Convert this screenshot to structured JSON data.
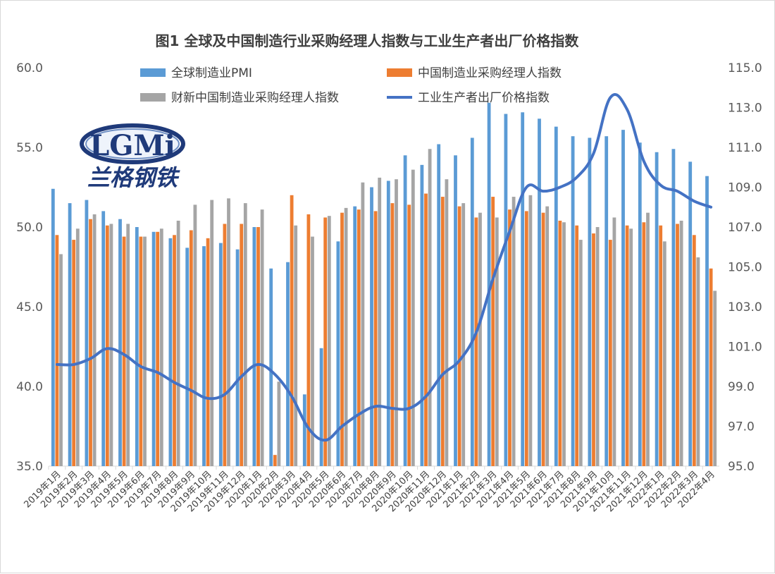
{
  "chart_data": {
    "type": "bar",
    "title": "图1 全球及中国制造行业采购经理人指数与工业生产者出厂价格指数",
    "categories": [
      "2019年1月",
      "2019年2月",
      "2019年3月",
      "2019年4月",
      "2019年5月",
      "2019年6月",
      "2019年7月",
      "2019年8月",
      "2019年9月",
      "2019年10月",
      "2019年11月",
      "2019年12月",
      "2020年1月",
      "2020年2月",
      "2020年3月",
      "2020年4月",
      "2020年5月",
      "2020年6月",
      "2020年7月",
      "2020年8月",
      "2020年9月",
      "2020年10月",
      "2020年11月",
      "2020年12月",
      "2021年1月",
      "2021年2月",
      "2021年3月",
      "2021年4月",
      "2021年5月",
      "2021年6月",
      "2021年7月",
      "2021年8月",
      "2021年9月",
      "2021年10月",
      "2021年11月",
      "2021年12月",
      "2022年1月",
      "2022年2月",
      "2022年3月",
      "2022年4月"
    ],
    "series": [
      {
        "name": "全球制造业PMI",
        "type": "bar",
        "axis": "left",
        "color": "#5b9bd5",
        "values": [
          52.4,
          51.5,
          51.7,
          51.0,
          50.5,
          50.0,
          49.7,
          49.3,
          48.7,
          48.8,
          49.0,
          48.6,
          50.0,
          47.4,
          47.8,
          39.5,
          42.4,
          49.1,
          51.3,
          52.5,
          52.9,
          54.5,
          53.9,
          55.2,
          54.5,
          55.6,
          57.8,
          57.1,
          57.2,
          56.8,
          56.3,
          55.7,
          55.6,
          55.7,
          56.1,
          55.3,
          54.7,
          54.9,
          54.1,
          53.2
        ]
      },
      {
        "name": "中国制造业采购经理人指数",
        "type": "bar",
        "axis": "left",
        "color": "#ed7d31",
        "values": [
          49.5,
          49.2,
          50.5,
          50.1,
          49.4,
          49.4,
          49.7,
          49.5,
          49.8,
          49.3,
          50.2,
          50.2,
          50.0,
          35.7,
          52.0,
          50.8,
          50.6,
          50.9,
          51.1,
          51.0,
          51.5,
          51.4,
          52.1,
          51.9,
          51.3,
          50.6,
          51.9,
          51.1,
          51.0,
          50.9,
          50.4,
          50.1,
          49.6,
          49.2,
          50.1,
          50.3,
          50.1,
          50.2,
          49.5,
          47.4
        ]
      },
      {
        "name": "财新中国制造业采购经理人指数",
        "type": "bar",
        "axis": "left",
        "color": "#a5a5a5",
        "values": [
          48.3,
          49.9,
          50.8,
          50.2,
          50.2,
          49.4,
          49.9,
          50.4,
          51.4,
          51.7,
          51.8,
          51.5,
          51.1,
          40.3,
          50.1,
          49.4,
          50.7,
          51.2,
          52.8,
          53.1,
          53.0,
          53.6,
          54.9,
          53.0,
          51.5,
          50.9,
          50.6,
          51.9,
          52.0,
          51.3,
          50.3,
          49.2,
          50.0,
          50.6,
          49.9,
          50.9,
          49.1,
          50.4,
          48.1,
          46.0
        ]
      },
      {
        "name": "工业生产者出厂价格指数",
        "type": "line",
        "axis": "right",
        "color": "#4472c4",
        "values": [
          100.1,
          100.1,
          100.4,
          100.9,
          100.6,
          100.0,
          99.7,
          99.2,
          98.8,
          98.4,
          98.6,
          99.5,
          100.1,
          99.6,
          98.5,
          96.9,
          96.3,
          97.0,
          97.6,
          98.0,
          97.9,
          97.9,
          98.5,
          99.6,
          100.3,
          101.7,
          104.4,
          106.8,
          109.0,
          108.8,
          109.0,
          109.5,
          110.7,
          113.5,
          112.9,
          110.3,
          109.1,
          108.8,
          108.3,
          108.0
        ]
      }
    ],
    "y_left": {
      "ylim": [
        35.0,
        60.0
      ],
      "ticks": [
        "35.0",
        "40.0",
        "45.0",
        "50.0",
        "55.0",
        "60.0"
      ]
    },
    "y_right": {
      "ylim": [
        95.0,
        115.0
      ],
      "ticks": [
        "95.0",
        "97.0",
        "99.0",
        "101.0",
        "103.0",
        "105.0",
        "107.0",
        "109.0",
        "111.0",
        "113.0",
        "115.0"
      ]
    },
    "xlabel": "",
    "ylabel": "",
    "grid": false,
    "legend_position": "top"
  },
  "logo": {
    "text": "LGMi",
    "subtitle": "兰格钢铁"
  }
}
